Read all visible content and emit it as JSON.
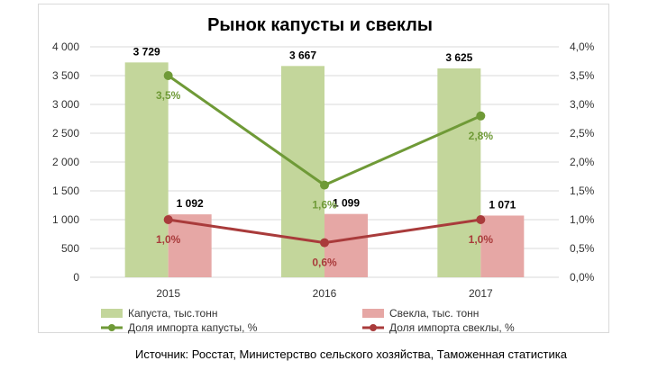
{
  "source_note": "Источник: Росстат, Министерство сельского хозяйства, Таможенная статистика",
  "chart_data": {
    "type": "bar",
    "title": "Рынок капусты и свеклы",
    "categories": [
      "2015",
      "2016",
      "2017"
    ],
    "series": [
      {
        "name": "Капуста, тыс.тонн",
        "kind": "bar",
        "axis": "left",
        "color": "#c3d69b",
        "values": [
          3729,
          3667,
          3625
        ],
        "labels": [
          "3 729",
          "3 667",
          "3 625"
        ]
      },
      {
        "name": "Свекла, тыс. тонн",
        "kind": "bar",
        "axis": "left",
        "color": "#e6a7a5",
        "values": [
          1092,
          1099,
          1071
        ],
        "labels": [
          "1 092",
          "1 099",
          "1 071"
        ]
      },
      {
        "name": "Доля импорта капусты, %",
        "kind": "line",
        "axis": "right",
        "color": "#6f9a37",
        "values": [
          3.5,
          1.6,
          2.8
        ],
        "labels": [
          "3,5%",
          "1,6%",
          "2,8%"
        ]
      },
      {
        "name": "Доля импорта свеклы, %",
        "kind": "line",
        "axis": "right",
        "color": "#a93b3b",
        "values": [
          1.0,
          0.6,
          1.0
        ],
        "labels": [
          "1,0%",
          "0,6%",
          "1,0%"
        ]
      }
    ],
    "y_left": {
      "min": 0,
      "max": 4000,
      "ticks": [
        0,
        500,
        1000,
        1500,
        2000,
        2500,
        3000,
        3500,
        4000
      ],
      "tick_labels": [
        "0",
        "500",
        "1 000",
        "1 500",
        "2 000",
        "2 500",
        "3 000",
        "3 500",
        "4 000"
      ]
    },
    "y_right": {
      "min": 0,
      "max": 4.0,
      "ticks": [
        0,
        0.5,
        1.0,
        1.5,
        2.0,
        2.5,
        3.0,
        3.5,
        4.0
      ],
      "tick_labels": [
        "0,0%",
        "0,5%",
        "1,0%",
        "1,5%",
        "2,0%",
        "2,5%",
        "3,0%",
        "3,5%",
        "4,0%"
      ]
    },
    "grid": true,
    "legend_position": "bottom"
  }
}
